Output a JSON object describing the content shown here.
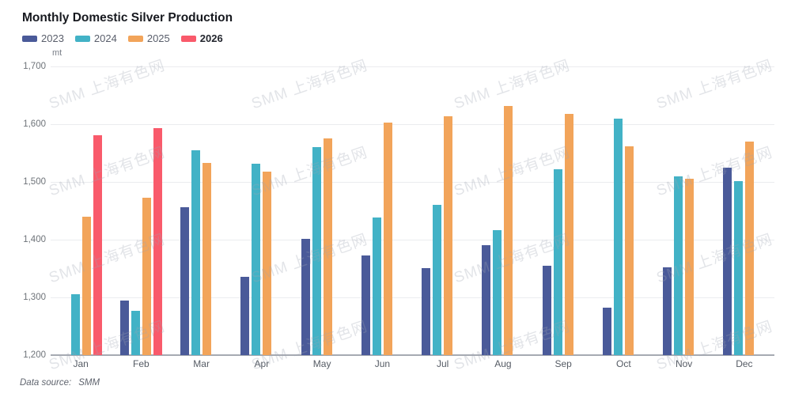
{
  "header": {
    "title": "Monthly Domestic Silver Production"
  },
  "unit_label": "mt",
  "watermark": {
    "text": "SMM 上海有色网"
  },
  "footer": {
    "data_source_label": "Data source:",
    "data_source_value": "SMM"
  },
  "chart_data": {
    "type": "bar",
    "title": "Monthly Domestic Silver Production",
    "xlabel": "",
    "ylabel": "mt",
    "ylim": [
      1200,
      1700
    ],
    "ytick_labels_top_down": [
      "1,700",
      "1,600",
      "1,500",
      "1,400",
      "1,300",
      "1,200"
    ],
    "grid": true,
    "legend_position": "top-left",
    "categories": [
      "Jan",
      "Feb",
      "Mar",
      "Apr",
      "May",
      "Jun",
      "Jul",
      "Aug",
      "Sep",
      "Oct",
      "Nov",
      "Dec"
    ],
    "series": [
      {
        "name": "2023",
        "color": "#4A5A99",
        "bold_in_legend": false,
        "values": [
          null,
          1295,
          1456,
          1335,
          1401,
          1373,
          1351,
          1390,
          1355,
          1282,
          1352,
          1524
        ]
      },
      {
        "name": "2024",
        "color": "#42B2C6",
        "bold_in_legend": false,
        "values": [
          1306,
          1277,
          1555,
          1532,
          1560,
          1438,
          1460,
          1416,
          1522,
          1610,
          1510,
          1501
        ]
      },
      {
        "name": "2025",
        "color": "#F2A45A",
        "bold_in_legend": false,
        "values": [
          1440,
          1473,
          1533,
          1518,
          1575,
          1603,
          1614,
          1632,
          1618,
          1561,
          1505,
          1570
        ]
      },
      {
        "name": "2026",
        "color": "#F95A6B",
        "bold_in_legend": true,
        "values": [
          1581,
          1593,
          null,
          null,
          null,
          null,
          null,
          null,
          null,
          null,
          null,
          null
        ]
      }
    ]
  }
}
